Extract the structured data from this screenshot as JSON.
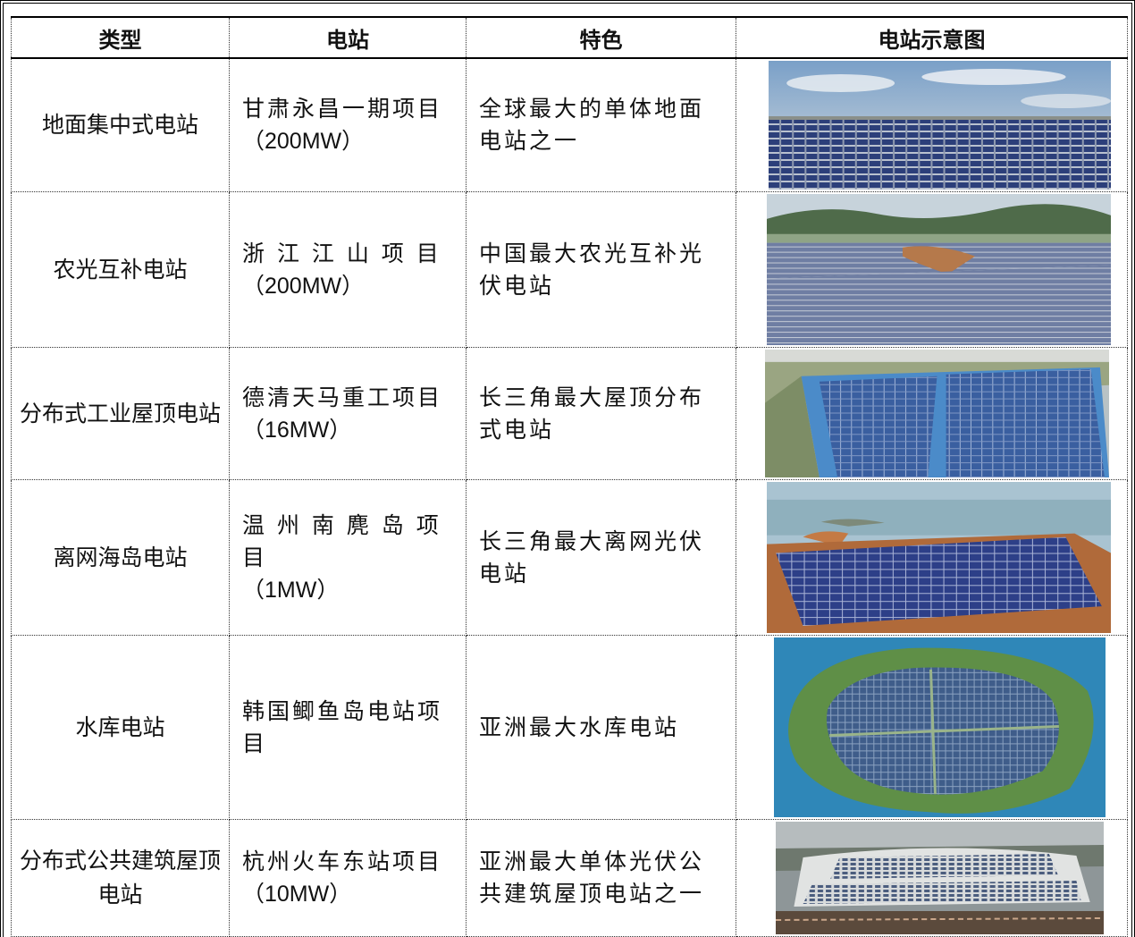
{
  "table": {
    "headers": [
      "类型",
      "电站",
      "特色",
      "电站示意图"
    ],
    "rows": [
      {
        "type": "地面集中式电站",
        "station": "甘肃永昌一期项目",
        "capacity": "（200MW）",
        "feature": "全球最大的单体地面电站之一",
        "image": "ground-pv-field-photo"
      },
      {
        "type": "农光互补电站",
        "station": "浙 江 江 山 项 目",
        "capacity": "（200MW）",
        "feature": "中国最大农光互补光伏电站",
        "image": "agri-pv-hills-photo"
      },
      {
        "type": "分布式工业屋顶电站",
        "station": "德清天马重工项目",
        "capacity": "（16MW）",
        "feature": "长三角最大屋顶分布式电站",
        "image": "industrial-rooftop-photo"
      },
      {
        "type": "离网海岛电站",
        "station": "温 州 南 麂 岛 项 目",
        "capacity": "（1MW）",
        "feature": "长三角最大离网光伏电站",
        "image": "island-offgrid-photo"
      },
      {
        "type": "水库电站",
        "station": "韩国鲫鱼岛电站项目",
        "capacity": "",
        "feature": "亚洲最大水库电站",
        "image": "reservoir-island-photo"
      },
      {
        "type": "分布式公共建筑屋顶电站",
        "station": "杭州火车东站项目",
        "capacity": "（10MW）",
        "feature": "亚洲最大单体光伏公共建筑屋顶电站之一",
        "image": "station-roof-photo"
      }
    ]
  }
}
